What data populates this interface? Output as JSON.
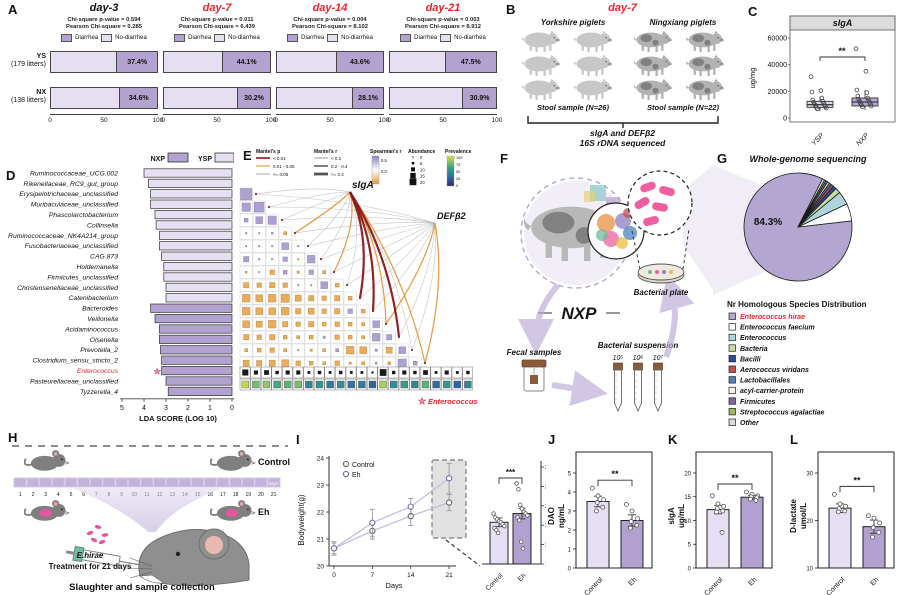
{
  "colors": {
    "light_purple": "#e6def1",
    "dark_purple": "#b2a2d0",
    "bar_stroke": "#444",
    "red": "#e8252b",
    "dark_red": "#8b1717",
    "orange": "#e39b40",
    "gray_line": "#b0b0b0",
    "pos_cell": "#a79bcc",
    "neg_cell": "#e6a74f"
  },
  "panel_a": {
    "label": "A",
    "legend": [
      "Diarrhea",
      "No-diarrhea"
    ],
    "rows": [
      {
        "name": "YS",
        "sub": "(179 litters)"
      },
      {
        "name": "NX",
        "sub": "(138 litters)"
      }
    ]
  },
  "panel_b": {
    "label": "B",
    "title": "day-7",
    "left_group": "Yorkshire piglets",
    "right_group": "Ningxiang piglets",
    "left_caption": "Stool sample (N=26)",
    "right_caption": "Stool sample (N=22)",
    "bottom_line1": "sIgA and DEFβ2",
    "bottom_line2": "16S rDNA sequenced"
  },
  "panel_c": {
    "label": "C"
  },
  "panel_d": {
    "label": "D"
  },
  "panel_e": {
    "label": "E"
  },
  "panel_f": {
    "label": "F",
    "main_label": "NXP",
    "fecal_label": "Fecal samples",
    "suspension_label": "Bacterial suspension",
    "dilutions": [
      "10⁵",
      "10⁶",
      "10⁷"
    ],
    "plate_label": "Bacterial plate"
  },
  "panel_g": {
    "label": "G",
    "title": "Whole-genome sequencing",
    "legend_title": "Nr Homologous Species Distribution"
  },
  "panel_h": {
    "label": "H",
    "group_top": "Control",
    "group_bottom": "Eh",
    "days_word": "days",
    "treatment_line1": "E.hirae",
    "treatment_line2": "Treatment for 21 days",
    "caption": "Slaughter and sample collection"
  },
  "panel_i": {
    "label": "I"
  },
  "panel_j": {
    "label": "J"
  },
  "panel_k": {
    "label": "K"
  },
  "panel_l": {
    "label": "L"
  },
  "chart_data": [
    {
      "id": "A",
      "type": "bar",
      "categories": [
        "YS (179 litters)",
        "NX (138 litters)"
      ],
      "legend": [
        "Diarrhea",
        "No-diarrhea"
      ],
      "x_ticks": [
        0,
        50,
        100
      ],
      "groups": [
        {
          "title": "day-3",
          "title_color": "#111",
          "stats": [
            "Chi-square p-value = 0.594",
            "Pearson Chi-square = 0.285"
          ],
          "values": [
            37.4,
            34.6
          ]
        },
        {
          "title": "day-7",
          "title_color": "#e8252b",
          "stats": [
            "Chi-square p-value = 0.011",
            "Pearson Chi-square = 6.439"
          ],
          "values": [
            44.1,
            30.2
          ]
        },
        {
          "title": "day-14",
          "title_color": "#e8252b",
          "stats": [
            "Chi-square p-value = 0.004",
            "Pearson Chi-square = 8.102"
          ],
          "values": [
            43.6,
            28.1
          ]
        },
        {
          "title": "day-21",
          "title_color": "#e8252b",
          "stats": [
            "Chi-square p-value = 0.003",
            "Pearson Chi-square = 8.912"
          ],
          "values": [
            47.5,
            30.9
          ]
        }
      ]
    },
    {
      "id": "C",
      "type": "box",
      "title": "sIgA",
      "ylabel": "ug/mg",
      "yticks": [
        0,
        20000,
        40000,
        60000
      ],
      "categories": [
        "YSP",
        "NXP"
      ],
      "significance": "**",
      "boxes": [
        {
          "q1": 8000,
          "median": 10000,
          "q3": 12500,
          "lo": 5000,
          "hi": 16000
        },
        {
          "q1": 9000,
          "median": 12000,
          "q3": 15000,
          "lo": 6000,
          "hi": 21000
        }
      ],
      "points": [
        [
          31000,
          20500,
          19500,
          15000,
          13500,
          12500,
          11800,
          11000,
          10400,
          9800,
          9200,
          8600,
          8000,
          7400,
          6800
        ],
        [
          52000,
          35000,
          21000,
          19000,
          16500,
          15000,
          14200,
          13400,
          12600,
          11800,
          11000,
          10400,
          9800,
          9000,
          8400
        ]
      ]
    },
    {
      "id": "D",
      "type": "bar",
      "xlabel": "LDA SCORE (LOG 10)",
      "xticks": [
        5,
        4,
        3,
        2,
        1,
        0
      ],
      "legend": [
        "NXP",
        "YSP"
      ],
      "taxa": [
        {
          "name": "Ruminococcaceae_UCG.002",
          "score": 4.0,
          "group": "YSP"
        },
        {
          "name": "Rikenellaceae_RC9_gut_group",
          "score": 3.8,
          "group": "YSP"
        },
        {
          "name": "Erysipelotrichaceae_unclassified",
          "score": 3.7,
          "group": "YSP"
        },
        {
          "name": "Muribaculaceae_unclassified",
          "score": 3.7,
          "group": "YSP"
        },
        {
          "name": "Phascolarctobacterium",
          "score": 3.5,
          "group": "YSP"
        },
        {
          "name": "Collinsella",
          "score": 3.45,
          "group": "YSP"
        },
        {
          "name": "Ruminococcaceae_NK4A214_group",
          "score": 3.3,
          "group": "YSP"
        },
        {
          "name": "Fusobacteriaceae_unclassified",
          "score": 3.3,
          "group": "YSP"
        },
        {
          "name": "CAG.873",
          "score": 3.2,
          "group": "YSP"
        },
        {
          "name": "Holdemanella",
          "score": 3.1,
          "group": "YSP"
        },
        {
          "name": "Firmicutes_unclassified",
          "score": 3.1,
          "group": "YSP"
        },
        {
          "name": "Christensenellaceae_unclassified",
          "score": 3.0,
          "group": "YSP"
        },
        {
          "name": "Catenibacterium",
          "score": 3.0,
          "group": "YSP"
        },
        {
          "name": "Bacteroides",
          "score": 3.7,
          "group": "NXP"
        },
        {
          "name": "Veillonella",
          "score": 3.5,
          "group": "NXP"
        },
        {
          "name": "Acidaminococcus",
          "score": 3.3,
          "group": "NXP"
        },
        {
          "name": "Olsenella",
          "score": 3.3,
          "group": "NXP"
        },
        {
          "name": "Prevotella_2",
          "score": 3.25,
          "group": "NXP"
        },
        {
          "name": "Clostridium_sensu_stricto_2",
          "score": 3.2,
          "group": "NXP"
        },
        {
          "name": "Enterococcus",
          "score": 3.2,
          "group": "NXP",
          "highlight": true
        },
        {
          "name": "Pasteurellaceae_unclassified",
          "score": 3.0,
          "group": "NXP"
        },
        {
          "name": "Tyzzerella_4",
          "score": 2.9,
          "group": "NXP"
        }
      ]
    },
    {
      "id": "E",
      "type": "heatmap",
      "nodes": [
        "sIgA",
        "DEFβ2"
      ],
      "footnote": "Enterococcus",
      "legend": {
        "mantel_p": {
          "title": "Mantel's p",
          "items": [
            "< 0.01",
            "0.01 - 0.05",
            ">= 0.05"
          ]
        },
        "mantel_r": {
          "title": "Mantel's r",
          "items": [
            "< 0.2",
            "0.2 - 0.4",
            ">= 0.4"
          ]
        },
        "spearman": {
          "title": "Spearman's r",
          "ticks": [
            "0.5",
            "0.0"
          ]
        },
        "abundance": {
          "title": "Abundance",
          "sizes": [
            0,
            5,
            10,
            15,
            20
          ]
        },
        "prevalence": {
          "title": "Prevalence",
          "ticks": [
            100,
            75,
            50,
            25,
            0
          ]
        }
      },
      "matrix": [
        [
          0.75
        ],
        [
          0.55,
          0.65
        ],
        [
          0.25,
          0.45,
          0.55
        ],
        [
          0.1,
          0.08,
          0.12,
          -0.2
        ],
        [
          0.05,
          0.04,
          0.06,
          0.45,
          0.08
        ],
        [
          0.35,
          0.1,
          0.06,
          0.3,
          -0.08,
          0.5
        ],
        [
          -0.12,
          0.06,
          -0.3,
          0.25,
          -0.15,
          0.3,
          -0.2
        ],
        [
          -0.35,
          -0.3,
          -0.35,
          -0.3,
          0.06,
          0.08,
          0.45,
          -0.25
        ],
        [
          -0.5,
          -0.45,
          -0.5,
          -0.55,
          -0.4,
          -0.35,
          -0.3,
          -0.35,
          -0.25
        ],
        [
          -0.5,
          -0.45,
          -0.45,
          -0.5,
          -0.35,
          -0.4,
          -0.3,
          -0.35,
          0.3,
          -0.25
        ],
        [
          -0.45,
          -0.4,
          -0.5,
          -0.35,
          -0.3,
          -0.35,
          -0.25,
          -0.3,
          -0.25,
          -0.2,
          0.45
        ],
        [
          -0.35,
          -0.3,
          -0.35,
          -0.25,
          -0.2,
          -0.25,
          0.15,
          -0.3,
          -0.25,
          -0.2,
          0.5,
          0.35
        ],
        [
          -0.2,
          -0.25,
          -0.3,
          -0.2,
          -0.1,
          -0.15,
          -0.2,
          0.2,
          -0.5,
          -0.45,
          0.15,
          -0.4,
          0.45
        ],
        [
          -0.4,
          -0.35,
          -0.4,
          -0.45,
          -0.3,
          -0.25,
          -0.2,
          -0.3,
          -0.15,
          -0.2,
          0.12,
          -0.18,
          0.55,
          0.25
        ]
      ],
      "sig_lines_siga": [
        "gray",
        "gray",
        "gray",
        "orange",
        "gray",
        "gray",
        "orange",
        "gray",
        "red",
        "red",
        "orange",
        "red",
        "gray",
        "orange"
      ],
      "sig_lines_defb": [
        "gray",
        "gray",
        "gray",
        "gray",
        "gray",
        "gray",
        "gray",
        "gray",
        "gray",
        "gray",
        "orange",
        "gray",
        "gray",
        "orange"
      ],
      "abundance_row": [
        14,
        8,
        10,
        6,
        8,
        8,
        4,
        6,
        4,
        6,
        4,
        4,
        2,
        16,
        6,
        8,
        6,
        10,
        4,
        8,
        4,
        6
      ],
      "prevalence_row": [
        95,
        80,
        85,
        70,
        75,
        80,
        50,
        60,
        45,
        55,
        40,
        45,
        30,
        90,
        55,
        65,
        50,
        75,
        35,
        60,
        30,
        50
      ]
    },
    {
      "id": "G",
      "type": "pie",
      "main_pct_label": "84.3%",
      "slices": [
        {
          "name": "Enterococcus hirae",
          "value": 84.3,
          "color": "#b3a6d0",
          "label_color": "#e8252b"
        },
        {
          "name": "Enterococcus faecium",
          "value": 5.2,
          "color": "#ffffff"
        },
        {
          "name": "Enterococcus",
          "value": 4.0,
          "color": "#aed4de"
        },
        {
          "name": "Bacteria",
          "value": 1.6,
          "color": "#c6d9a0"
        },
        {
          "name": "Bacilli",
          "value": 1.0,
          "color": "#31499a"
        },
        {
          "name": "Aerococcus viridans",
          "value": 0.8,
          "color": "#c0504d"
        },
        {
          "name": "Lactobacillales",
          "value": 0.7,
          "color": "#4f81bd"
        },
        {
          "name": "acyl-carrier-protein",
          "value": 0.6,
          "color": "#f5efdc"
        },
        {
          "name": "Firmicutes",
          "value": 0.6,
          "color": "#8064a2"
        },
        {
          "name": "Streptococcus agalactiae",
          "value": 0.5,
          "color": "#9bbb59"
        },
        {
          "name": "Other",
          "value": 0.7,
          "color": "#d9d9d9"
        }
      ]
    },
    {
      "id": "I",
      "type": "line",
      "ylabel": "Bodyweight(g)",
      "xlabel": "Days",
      "yticks": [
        20,
        21,
        22,
        23,
        24
      ],
      "xticks": [
        0,
        7,
        14,
        21
      ],
      "series": [
        {
          "name": "Control",
          "values": [
            20.65,
            21.3,
            21.85,
            22.35
          ],
          "err": [
            0.25,
            0.3,
            0.35,
            0.3
          ]
        },
        {
          "name": "Eh",
          "values": [
            20.65,
            21.6,
            22.2,
            23.25
          ],
          "err": [
            0.2,
            0.5,
            0.3,
            0.55
          ]
        }
      ],
      "inset": {
        "significance": "***",
        "yticks": [
          18,
          20,
          22,
          24,
          26,
          28
        ],
        "categories": [
          "Control",
          "Eh"
        ],
        "values": [
          22.3,
          23.2
        ],
        "err": [
          0.45,
          0.55
        ],
        "points": [
          [
            23.2,
            22.8,
            22.6,
            22.4,
            22.3,
            22.1,
            21.9,
            21.7,
            21.5,
            21.2
          ],
          [
            26.3,
            25.7,
            24.1,
            23.7,
            23.4,
            23.2,
            23.0,
            22.8,
            22.5,
            20.3,
            19.6
          ]
        ]
      }
    },
    {
      "id": "J",
      "type": "bar",
      "ylabel1": "DAO",
      "ylabel2": "ng/mL",
      "yticks": [
        0,
        1,
        2,
        3,
        4,
        5
      ],
      "ymin": 0,
      "categories": [
        "Control",
        "Eh"
      ],
      "values": [
        3.5,
        2.5
      ],
      "err": [
        0.28,
        0.3
      ],
      "significance": "**",
      "points": [
        [
          4.2,
          3.8,
          3.6,
          3.45,
          3.2,
          3.0
        ],
        [
          3.35,
          3.0,
          2.6,
          2.45,
          2.25,
          2.1
        ]
      ]
    },
    {
      "id": "K",
      "type": "bar",
      "ylabel1": "sIgA",
      "ylabel2": "ug/mL",
      "yticks": [
        0,
        5,
        10,
        15,
        20
      ],
      "ymin": 0,
      "categories": [
        "Control",
        "Eh"
      ],
      "values": [
        12.3,
        14.9
      ],
      "err": [
        0.9,
        0.4
      ],
      "significance": "**",
      "points": [
        [
          15.2,
          13.5,
          13.0,
          12.5,
          12.0,
          11.8,
          7.5
        ],
        [
          16.0,
          15.5,
          15.2,
          15.0,
          14.8,
          14.5,
          14.2
        ]
      ]
    },
    {
      "id": "L",
      "type": "bar",
      "ylabel1": "D-lactate",
      "ylabel2": "umol/L",
      "yticks": [
        10,
        20,
        30
      ],
      "ymin": 10,
      "categories": [
        "Control",
        "Eh"
      ],
      "values": [
        22.6,
        18.7
      ],
      "err": [
        0.9,
        1.4
      ],
      "significance": "**",
      "points": [
        [
          25.5,
          23.5,
          23.0,
          22.5,
          22.0,
          21.8
        ],
        [
          21.0,
          20.5,
          19.5,
          18.5,
          17.5,
          16.5
        ]
      ]
    }
  ]
}
